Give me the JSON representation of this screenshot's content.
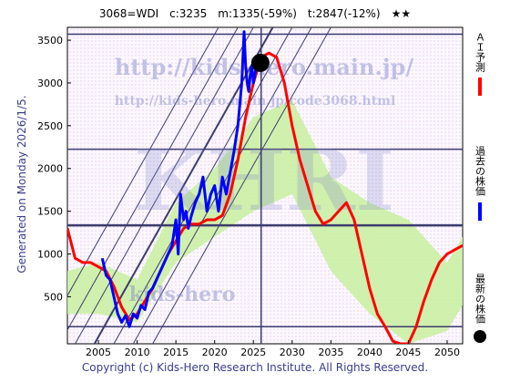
{
  "chart_data": {
    "type": "line",
    "title": "3068=WDI　c:3235　m:1335(-59%)　t:2847(-12%)　★★",
    "side_label": "Generated on Monday 2026/1/5.",
    "footer": "Copyright (c) Kids-Hero Research Institute. All Rights Reserved.",
    "watermarks": [
      "http://kids-hero.main.jp/",
      "http://kids-hero.main.jp/code3068.html",
      "KHRI",
      "kids-hero"
    ],
    "x_ticks": [
      2005,
      2010,
      2015,
      2020,
      2025,
      2030,
      2035,
      2040,
      2045,
      2050
    ],
    "y_ticks": [
      500,
      1000,
      1500,
      2000,
      2500,
      3000,
      3500
    ],
    "xlim": [
      2001,
      2052
    ],
    "ylim": [
      -50,
      3650
    ],
    "current_point": {
      "x": 2025.9,
      "y": 3235
    },
    "horizontal_lines": [
      150,
      1335,
      2225,
      3570
    ],
    "vertical_line": 2026.0,
    "legend": [
      {
        "label": "ＡＩ予測",
        "color": "#ff0000"
      },
      {
        "label": "過去の株価",
        "color": "#0000ff"
      },
      {
        "label": "最新の株価",
        "color": "#000000"
      }
    ],
    "series": [
      {
        "name": "ＡＩ予測",
        "color": "#ff0000",
        "x": [
          2001,
          2002,
          2003,
          2004,
          2005,
          2006,
          2007,
          2008,
          2009,
          2010,
          2011,
          2012,
          2013,
          2014,
          2015,
          2016,
          2017,
          2018,
          2019,
          2020,
          2021,
          2022,
          2023,
          2024,
          2025,
          2026,
          2027,
          2028,
          2029,
          2030,
          2031,
          2032,
          2033,
          2034,
          2035,
          2036,
          2037,
          2038,
          2039,
          2040,
          2041,
          2042,
          2043,
          2044,
          2045,
          2046,
          2047,
          2048,
          2049,
          2050,
          2051,
          2052
        ],
        "y": [
          1300,
          950,
          900,
          900,
          850,
          800,
          620,
          380,
          230,
          300,
          450,
          600,
          800,
          1000,
          1150,
          1300,
          1350,
          1350,
          1400,
          1400,
          1450,
          1700,
          2100,
          2600,
          3000,
          3300,
          3350,
          3300,
          3000,
          2500,
          2100,
          1800,
          1500,
          1350,
          1400,
          1500,
          1600,
          1400,
          1000,
          600,
          300,
          150,
          -20,
          -50,
          -50,
          150,
          450,
          700,
          900,
          1000,
          1050,
          1100
        ]
      },
      {
        "name": "過去の株価",
        "color": "#0000ff",
        "x": [
          2005.5,
          2006,
          2006.5,
          2007,
          2007.5,
          2008,
          2008.5,
          2009,
          2009.5,
          2010,
          2010.5,
          2011,
          2011.5,
          2012,
          2012.5,
          2013,
          2013.5,
          2014,
          2014.5,
          2015,
          2015.3,
          2015.6,
          2016,
          2016.3,
          2016.6,
          2017,
          2017.5,
          2018,
          2018.5,
          2019,
          2019.5,
          2020,
          2020.5,
          2021,
          2021.5,
          2022,
          2022.5,
          2023,
          2023.5,
          2023.8,
          2024,
          2024.2,
          2024.4,
          2024.6,
          2024.8,
          2025,
          2025.3,
          2025.6,
          2025.9
        ],
        "y": [
          950,
          750,
          700,
          500,
          300,
          200,
          280,
          150,
          300,
          250,
          400,
          350,
          550,
          600,
          700,
          800,
          900,
          1000,
          1100,
          1400,
          1000,
          1700,
          1400,
          1500,
          1300,
          1450,
          1600,
          1700,
          1900,
          1500,
          1700,
          1800,
          1500,
          1900,
          1700,
          1950,
          2200,
          2500,
          3000,
          3600,
          3200,
          3000,
          2900,
          3100,
          3200,
          3000,
          3150,
          3200,
          3235
        ]
      }
    ],
    "forecast_band_x": [
      2001,
      2005,
      2010,
      2015,
      2020,
      2025,
      2030,
      2035,
      2040,
      2045,
      2050,
      2052
    ],
    "forecast_band_low": [
      300,
      300,
      200,
      900,
      1200,
      1500,
      1700,
      800,
      300,
      -50,
      100,
      400
    ],
    "forecast_band_high": [
      800,
      900,
      700,
      1600,
      2000,
      2600,
      2800,
      1900,
      1600,
      1400,
      900,
      1200
    ]
  }
}
